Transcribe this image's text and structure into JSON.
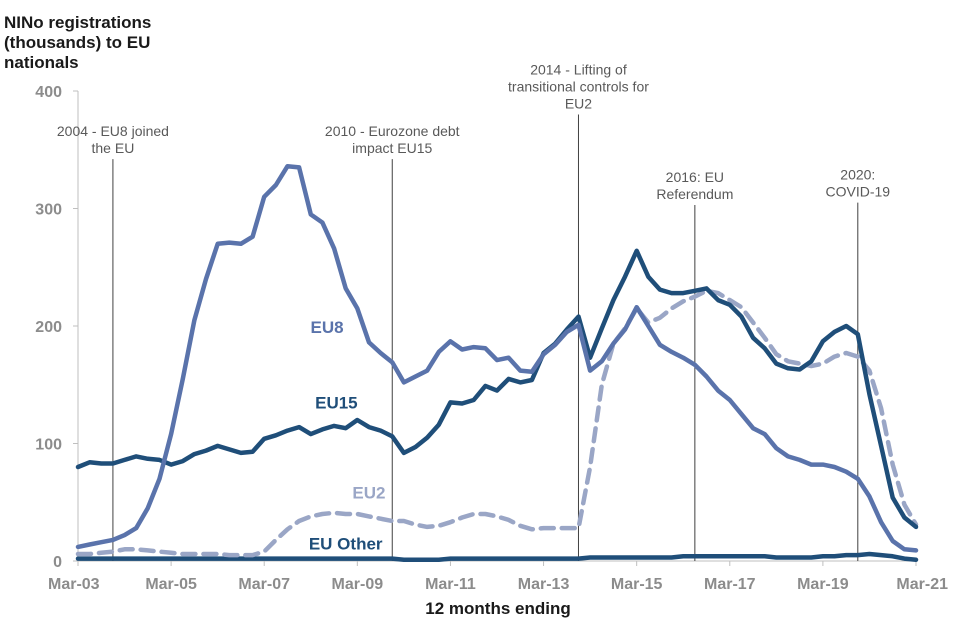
{
  "chart_data": {
    "type": "line",
    "ylabel_lines": [
      "NINo registrations",
      "(thousands) to EU",
      "nationals"
    ],
    "xlabel": "12 months ending",
    "ylim": [
      0,
      400
    ],
    "yticks": [
      0,
      100,
      200,
      300,
      400
    ],
    "xlim": [
      2003.0,
      2021.0
    ],
    "xticks": [
      {
        "x": 2003,
        "label": "Mar-03"
      },
      {
        "x": 2005,
        "label": "Mar-05"
      },
      {
        "x": 2007,
        "label": "Mar-07"
      },
      {
        "x": 2009,
        "label": "Mar-09"
      },
      {
        "x": 2011,
        "label": "Mar-11"
      },
      {
        "x": 2013,
        "label": "Mar-13"
      },
      {
        "x": 2015,
        "label": "Mar-15"
      },
      {
        "x": 2017,
        "label": "Mar-17"
      },
      {
        "x": 2019,
        "label": "Mar-19"
      },
      {
        "x": 2021,
        "label": "Mar-21"
      }
    ],
    "x": [
      2003.0,
      2003.25,
      2003.5,
      2003.75,
      2004.0,
      2004.25,
      2004.5,
      2004.75,
      2005.0,
      2005.25,
      2005.5,
      2005.75,
      2006.0,
      2006.25,
      2006.5,
      2006.75,
      2007.0,
      2007.25,
      2007.5,
      2007.75,
      2008.0,
      2008.25,
      2008.5,
      2008.75,
      2009.0,
      2009.25,
      2009.5,
      2009.75,
      2010.0,
      2010.25,
      2010.5,
      2010.75,
      2011.0,
      2011.25,
      2011.5,
      2011.75,
      2012.0,
      2012.25,
      2012.5,
      2012.75,
      2013.0,
      2013.25,
      2013.5,
      2013.75,
      2014.0,
      2014.25,
      2014.5,
      2014.75,
      2015.0,
      2015.25,
      2015.5,
      2015.75,
      2016.0,
      2016.25,
      2016.5,
      2016.75,
      2017.0,
      2017.25,
      2017.5,
      2017.75,
      2018.0,
      2018.25,
      2018.5,
      2018.75,
      2019.0,
      2019.25,
      2019.5,
      2019.75,
      2020.0,
      2020.25,
      2020.5,
      2020.75,
      2021.0
    ],
    "series": [
      {
        "name": "EU8",
        "color": "#5a73ab",
        "dashed": false,
        "values": [
          12,
          14,
          16,
          18,
          22,
          28,
          45,
          70,
          108,
          155,
          205,
          240,
          270,
          271,
          270,
          276,
          310,
          320,
          336,
          335,
          295,
          288,
          266,
          232,
          215,
          186,
          177,
          169,
          152,
          157,
          162,
          178,
          187,
          180,
          182,
          181,
          171,
          173,
          162,
          161,
          176,
          184,
          195,
          201,
          162,
          170,
          185,
          197,
          216,
          200,
          184,
          178,
          173,
          167,
          157,
          145,
          137,
          125,
          113,
          108,
          96,
          89,
          86,
          82,
          82,
          80,
          76,
          70,
          55,
          33,
          17,
          10,
          9
        ]
      },
      {
        "name": "EU15",
        "color": "#1f4e79",
        "dashed": false,
        "values": [
          80,
          84,
          83,
          83,
          86,
          89,
          87,
          86,
          82,
          85,
          91,
          94,
          98,
          95,
          92,
          93,
          104,
          107,
          111,
          114,
          108,
          112,
          115,
          113,
          120,
          114,
          111,
          106,
          92,
          97,
          105,
          116,
          135,
          134,
          137,
          149,
          145,
          155,
          152,
          154,
          177,
          185,
          197,
          208,
          173,
          198,
          222,
          242,
          264,
          242,
          231,
          228,
          228,
          230,
          232,
          222,
          218,
          208,
          190,
          181,
          168,
          164,
          163,
          170,
          187,
          195,
          200,
          193,
          142,
          98,
          54,
          37,
          29
        ]
      },
      {
        "name": "EU2",
        "color": "#9aa6c6",
        "dashed": true,
        "values": [
          6,
          6,
          7,
          8,
          10,
          10,
          9,
          8,
          7,
          6,
          6,
          6,
          6,
          5,
          5,
          5,
          8,
          18,
          27,
          34,
          38,
          40,
          41,
          40,
          40,
          38,
          36,
          34,
          34,
          31,
          29,
          30,
          33,
          37,
          40,
          40,
          38,
          35,
          30,
          27,
          28,
          28,
          28,
          28,
          80,
          150,
          185,
          198,
          215,
          203,
          207,
          215,
          221,
          225,
          230,
          228,
          222,
          216,
          203,
          190,
          176,
          170,
          168,
          166,
          168,
          174,
          177,
          174,
          162,
          130,
          82,
          48,
          31
        ]
      },
      {
        "name": "EU Other",
        "color": "#1f4e79",
        "dashed": false,
        "values": [
          2,
          2,
          2,
          2,
          2,
          2,
          2,
          2,
          2,
          2,
          2,
          2,
          2,
          2,
          2,
          2,
          2,
          2,
          2,
          2,
          2,
          2,
          2,
          2,
          2,
          2,
          2,
          2,
          1,
          1,
          1,
          1,
          2,
          2,
          2,
          2,
          2,
          2,
          2,
          2,
          2,
          2,
          2,
          2,
          3,
          3,
          3,
          3,
          3,
          3,
          3,
          3,
          4,
          4,
          4,
          4,
          4,
          4,
          4,
          4,
          3,
          3,
          3,
          3,
          4,
          4,
          5,
          5,
          6,
          5,
          4,
          2,
          1
        ]
      }
    ],
    "events": [
      {
        "x": 2003.75,
        "top": 342,
        "lines": [
          "2004 - EU8 joined",
          "the EU"
        ]
      },
      {
        "x": 2009.75,
        "top": 342,
        "lines": [
          "2010 - Eurozone debt",
          "impact EU15"
        ]
      },
      {
        "x": 2013.75,
        "top": 380,
        "lines": [
          "2014 - Lifting of",
          "transitional controls for",
          "EU2"
        ]
      },
      {
        "x": 2016.25,
        "top": 303,
        "lines": [
          "2016: EU",
          "Referendum"
        ]
      },
      {
        "x": 2019.75,
        "top": 305,
        "lines": [
          "2020:",
          "COVID-19"
        ]
      }
    ]
  }
}
